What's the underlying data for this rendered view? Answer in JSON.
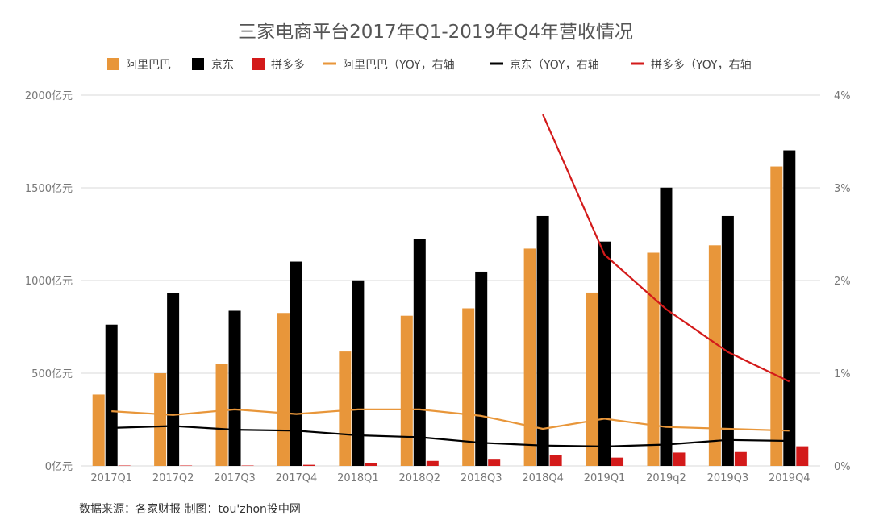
{
  "chart_data": {
    "type": "bar",
    "title": "三家电商平台2017年Q1-2019年Q4年营收情况",
    "categories": [
      "2017Q1",
      "2017Q2",
      "2017Q3",
      "2017Q4",
      "2018Q1",
      "2018Q2",
      "2018Q3",
      "2018Q4",
      "2019Q1",
      "2019q2",
      "2019Q3",
      "2019Q4"
    ],
    "y_left": {
      "ylim": [
        0,
        2000
      ],
      "ticks": [
        0,
        500,
        1000,
        1500,
        2000
      ],
      "tick_labels": [
        "0亿元",
        "500亿元",
        "1000亿元",
        "1500亿元",
        "2000亿元"
      ]
    },
    "y_right": {
      "ylim": [
        0,
        4
      ],
      "ticks": [
        0,
        1,
        2,
        3,
        4
      ],
      "tick_labels": [
        "0%",
        "1%",
        "2%",
        "3%",
        "4%"
      ]
    },
    "grid": true,
    "legend_position": "top",
    "bar_series": [
      {
        "name": "阿里巴巴",
        "color": "#E8963A",
        "values": [
          385,
          500,
          550,
          825,
          617,
          810,
          850,
          1172,
          935,
          1150,
          1190,
          1615
        ]
      },
      {
        "name": "京东",
        "color": "#000000",
        "values": [
          762,
          932,
          837,
          1102,
          1001,
          1222,
          1048,
          1348,
          1210,
          1501,
          1348,
          1702
        ]
      },
      {
        "name": "拼多多",
        "color": "#D31A1A",
        "values": [
          0.2,
          0.3,
          2,
          6,
          14,
          27,
          34,
          57,
          45,
          72,
          75,
          106
        ]
      }
    ],
    "line_series": [
      {
        "name": "阿里巴巴（YOY，右轴",
        "color": "#E8963A",
        "values": [
          0.59,
          0.55,
          0.61,
          0.56,
          0.61,
          0.61,
          0.54,
          0.4,
          0.51,
          0.42,
          0.4,
          0.38
        ]
      },
      {
        "name": "京东（YOY，右轴",
        "color": "#000000",
        "values": [
          0.41,
          0.43,
          0.39,
          0.38,
          0.33,
          0.31,
          0.25,
          0.22,
          0.21,
          0.23,
          0.28,
          0.27
        ]
      },
      {
        "name": "拼多多（YOY，右轴",
        "color": "#D31A1A",
        "values": [
          null,
          null,
          null,
          null,
          null,
          null,
          null,
          3.79,
          2.28,
          1.69,
          1.23,
          0.91
        ]
      }
    ]
  },
  "source_text": "数据来源：各家财报  制图：tou'zhon投中网"
}
